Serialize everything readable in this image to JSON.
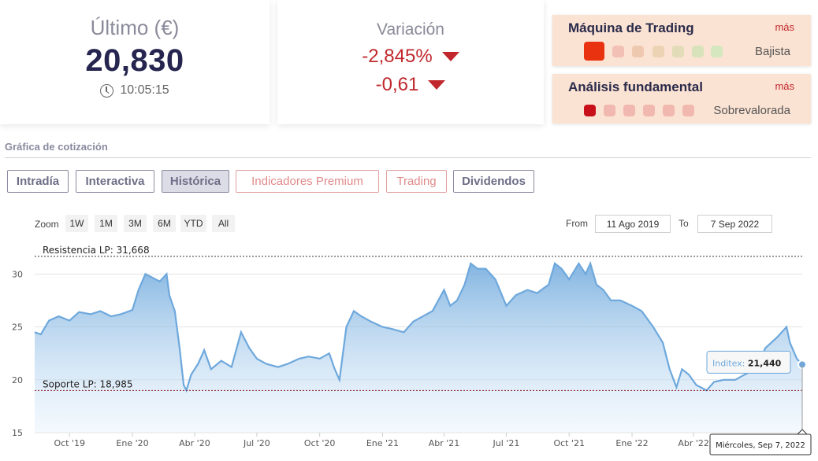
{
  "last_price": {
    "title": "Último (€)",
    "value": "20,830",
    "time": "10:05:15"
  },
  "variation": {
    "title": "Variación",
    "percent": "-2,845%",
    "absolute": "-0,61"
  },
  "trading_machine": {
    "title": "Máquina de Trading",
    "more": "más",
    "label": "Bajista"
  },
  "fundamental": {
    "title": "Análisis fundamental",
    "more": "más",
    "label": "Sobrevalorada"
  },
  "section": {
    "title": "Gráfica de cotización"
  },
  "tabs": [
    "Intradía",
    "Interactiva",
    "Histórica",
    "Indicadores Premium",
    "Trading",
    "Dividendos"
  ],
  "zoom": {
    "label": "Zoom",
    "buttons": [
      "1W",
      "1M",
      "3M",
      "6M",
      "YTD",
      "All"
    ]
  },
  "range": {
    "from_label": "From",
    "from": "11 Ago 2019",
    "to_label": "To",
    "to": "7 Sep 2022"
  },
  "tooltip": {
    "series": "Inditex:",
    "value": "21,440",
    "date": "Miércoles, Sep 7, 2022"
  },
  "colors": {
    "accent": "#c0282d",
    "series_line": "#6ea8dc",
    "rating_bg": "#fbe3d3"
  },
  "chart_data": {
    "type": "area",
    "title": "",
    "ylim": [
      15,
      33
    ],
    "y_ticks": [
      15,
      20,
      25,
      30
    ],
    "x_tick_labels": [
      "Oct '19",
      "Ene '20",
      "Abr '20",
      "Jul '20",
      "Oct '20",
      "Ene '21",
      "Abr '21",
      "Jul '21",
      "Oct '21",
      "Ene '22",
      "Abr '22"
    ],
    "x_range": [
      "2019-08-11",
      "2022-09-07"
    ],
    "annotations": [
      {
        "label": "Resistencia LP: 31,668",
        "value": 31.668
      },
      {
        "label": "Soporte LP: 18,985",
        "value": 18.985
      }
    ],
    "series": [
      {
        "values": [
          [
            "2019-08-11",
            24.5
          ],
          [
            "2019-08-20",
            24.3
          ],
          [
            "2019-09-01",
            25.6
          ],
          [
            "2019-09-15",
            26.0
          ],
          [
            "2019-10-01",
            25.6
          ],
          [
            "2019-10-15",
            26.4
          ],
          [
            "2019-11-01",
            26.2
          ],
          [
            "2019-11-15",
            26.5
          ],
          [
            "2019-12-01",
            26.0
          ],
          [
            "2019-12-15",
            26.2
          ],
          [
            "2020-01-01",
            26.6
          ],
          [
            "2020-01-10",
            28.5
          ],
          [
            "2020-01-20",
            30.0
          ],
          [
            "2020-02-01",
            29.6
          ],
          [
            "2020-02-10",
            29.3
          ],
          [
            "2020-02-20",
            30.0
          ],
          [
            "2020-02-24",
            28.0
          ],
          [
            "2020-03-03",
            26.5
          ],
          [
            "2020-03-10",
            23.0
          ],
          [
            "2020-03-16",
            19.5
          ],
          [
            "2020-03-20",
            19.0
          ],
          [
            "2020-03-27",
            20.5
          ],
          [
            "2020-04-06",
            21.5
          ],
          [
            "2020-04-15",
            22.8
          ],
          [
            "2020-04-25",
            21.0
          ],
          [
            "2020-05-10",
            21.8
          ],
          [
            "2020-05-25",
            21.2
          ],
          [
            "2020-06-08",
            24.5
          ],
          [
            "2020-06-20",
            23.0
          ],
          [
            "2020-07-01",
            22.0
          ],
          [
            "2020-07-15",
            21.5
          ],
          [
            "2020-08-01",
            21.2
          ],
          [
            "2020-08-15",
            21.5
          ],
          [
            "2020-09-01",
            22.0
          ],
          [
            "2020-09-15",
            22.2
          ],
          [
            "2020-10-01",
            22.0
          ],
          [
            "2020-10-15",
            22.5
          ],
          [
            "2020-10-23",
            21.0
          ],
          [
            "2020-10-30",
            20.0
          ],
          [
            "2020-11-09",
            25.0
          ],
          [
            "2020-11-20",
            26.5
          ],
          [
            "2020-12-01",
            26.0
          ],
          [
            "2020-12-15",
            25.5
          ],
          [
            "2021-01-01",
            25.0
          ],
          [
            "2021-01-15",
            24.8
          ],
          [
            "2021-02-01",
            24.5
          ],
          [
            "2021-02-15",
            25.5
          ],
          [
            "2021-03-01",
            26.0
          ],
          [
            "2021-03-15",
            26.5
          ],
          [
            "2021-04-01",
            28.5
          ],
          [
            "2021-04-10",
            27.0
          ],
          [
            "2021-04-20",
            27.5
          ],
          [
            "2021-05-01",
            29.0
          ],
          [
            "2021-05-10",
            31.0
          ],
          [
            "2021-05-20",
            30.5
          ],
          [
            "2021-06-01",
            30.5
          ],
          [
            "2021-06-15",
            29.5
          ],
          [
            "2021-07-01",
            27.0
          ],
          [
            "2021-07-15",
            28.0
          ],
          [
            "2021-08-01",
            28.5
          ],
          [
            "2021-08-15",
            28.2
          ],
          [
            "2021-09-01",
            29.0
          ],
          [
            "2021-09-10",
            31.0
          ],
          [
            "2021-09-20",
            30.5
          ],
          [
            "2021-10-01",
            29.5
          ],
          [
            "2021-10-15",
            31.0
          ],
          [
            "2021-10-25",
            30.0
          ],
          [
            "2021-11-01",
            31.0
          ],
          [
            "2021-11-10",
            29.0
          ],
          [
            "2021-11-20",
            28.5
          ],
          [
            "2021-12-01",
            27.5
          ],
          [
            "2021-12-15",
            27.5
          ],
          [
            "2022-01-01",
            27.0
          ],
          [
            "2022-01-15",
            26.5
          ],
          [
            "2022-02-01",
            25.0
          ],
          [
            "2022-02-15",
            23.5
          ],
          [
            "2022-02-25",
            21.0
          ],
          [
            "2022-03-07",
            19.3
          ],
          [
            "2022-03-15",
            21.0
          ],
          [
            "2022-03-25",
            20.5
          ],
          [
            "2022-04-05",
            19.5
          ],
          [
            "2022-04-20",
            19.0
          ],
          [
            "2022-05-01",
            19.8
          ],
          [
            "2022-05-15",
            20.0
          ],
          [
            "2022-06-01",
            20.0
          ],
          [
            "2022-06-15",
            20.5
          ],
          [
            "2022-07-01",
            21.0
          ],
          [
            "2022-07-15",
            23.0
          ],
          [
            "2022-08-01",
            24.0
          ],
          [
            "2022-08-15",
            25.0
          ],
          [
            "2022-08-20",
            23.5
          ],
          [
            "2022-08-30",
            22.0
          ],
          [
            "2022-09-07",
            21.44
          ]
        ]
      }
    ]
  }
}
